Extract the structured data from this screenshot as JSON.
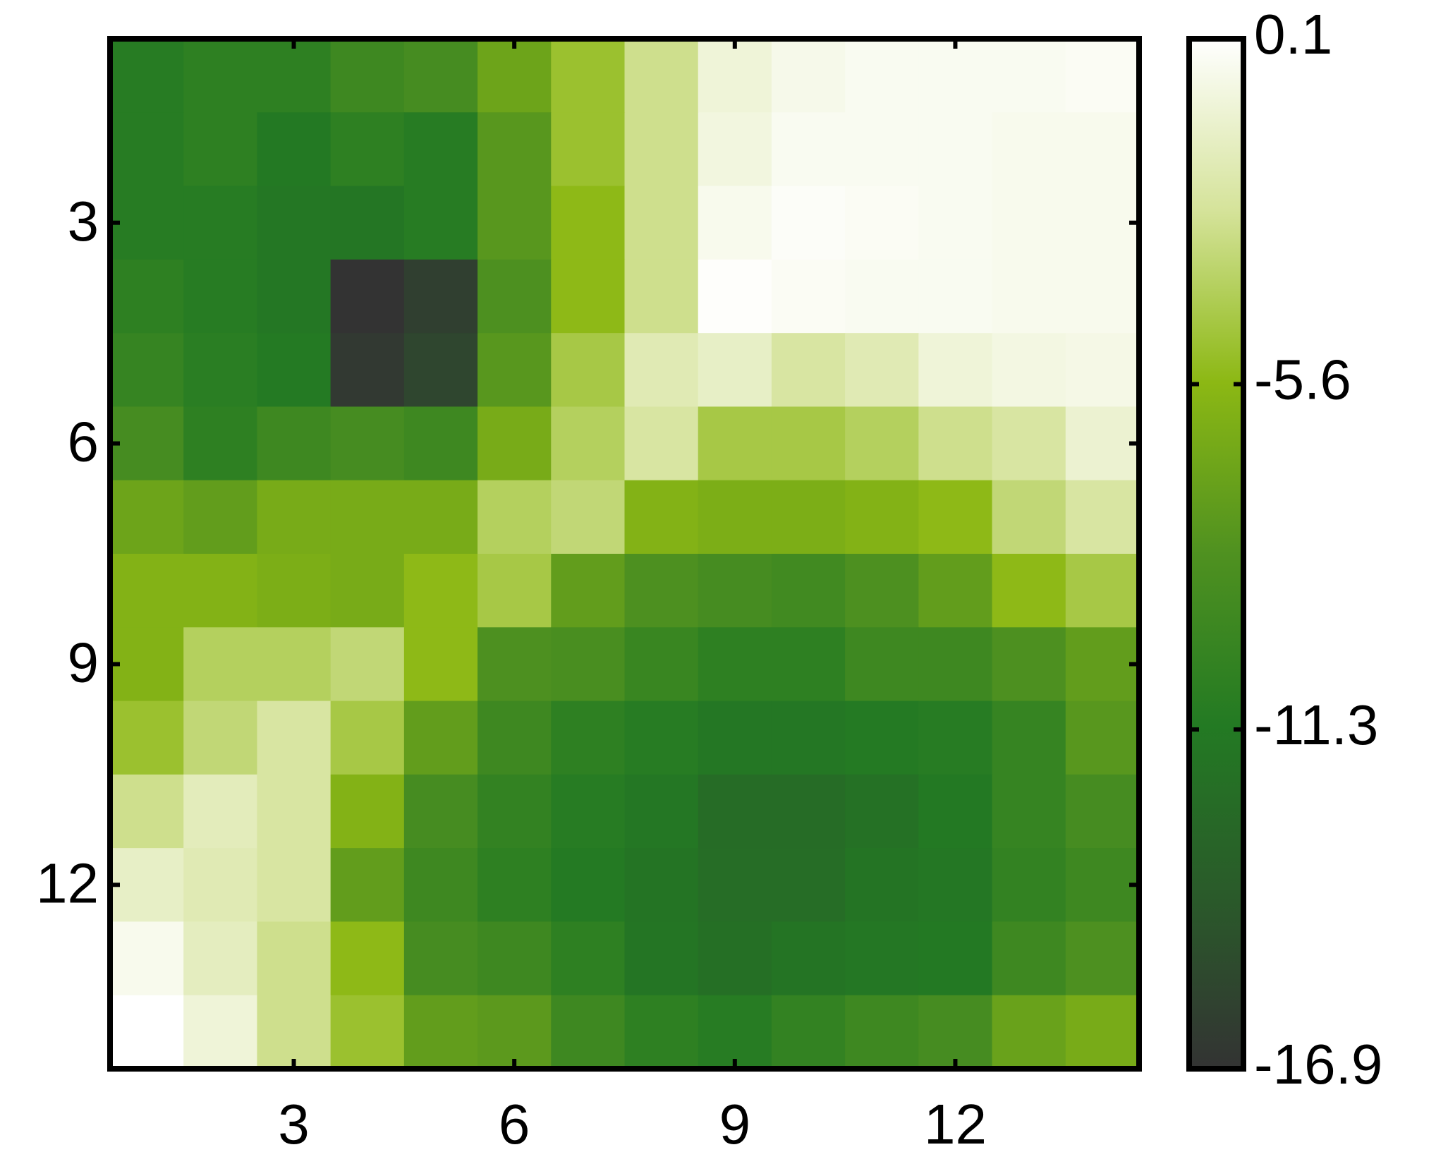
{
  "chart_data": {
    "type": "heatmap",
    "z": [
      [
        -11,
        -10.5,
        -10.5,
        -9.5,
        -9,
        -7,
        -5,
        -3,
        -1,
        -0.5,
        -0.3,
        -0.3,
        -0.3,
        -0.2
      ],
      [
        -11,
        -10.5,
        -11.3,
        -10.5,
        -11,
        -8,
        -5,
        -3,
        -0.8,
        -0.3,
        -0.3,
        -0.3,
        -0.4,
        -0.4
      ],
      [
        -11,
        -11,
        -11.5,
        -11.6,
        -11,
        -8,
        -5.5,
        -3,
        -0.4,
        -0.1,
        -0.2,
        -0.3,
        -0.4,
        -0.4
      ],
      [
        -10.5,
        -11,
        -11.5,
        -16.9,
        -16,
        -8.5,
        -5.5,
        -3,
        0,
        -0.2,
        -0.3,
        -0.3,
        -0.4,
        -0.4
      ],
      [
        -10,
        -10.8,
        -11.2,
        -16.5,
        -15.5,
        -8,
        -4.5,
        -2,
        -1.5,
        -2.5,
        -2,
        -1,
        -0.7,
        -0.6
      ],
      [
        -9,
        -10.5,
        -9.5,
        -9,
        -9.5,
        -6.5,
        -4,
        -2.5,
        -4.5,
        -4.5,
        -4,
        -3,
        -2.5,
        -1.2
      ],
      [
        -7,
        -7.5,
        -6.5,
        -6.5,
        -6.5,
        -4,
        -3.5,
        -6,
        -6.3,
        -6.3,
        -6,
        -5.5,
        -3.5,
        -2.5
      ],
      [
        -6,
        -6,
        -6.3,
        -6.5,
        -5.5,
        -4.5,
        -7.5,
        -8.5,
        -9,
        -9.3,
        -8.5,
        -7.5,
        -5.5,
        -4.5
      ],
      [
        -6,
        -4,
        -4,
        -3.5,
        -5.5,
        -8.5,
        -8.8,
        -9.8,
        -10.5,
        -10.5,
        -9.5,
        -9.5,
        -8.5,
        -7.5
      ],
      [
        -5,
        -3.5,
        -2.5,
        -4.5,
        -7.5,
        -9.5,
        -10.5,
        -11,
        -11.5,
        -11.5,
        -11.2,
        -11,
        -10,
        -8
      ],
      [
        -3,
        -1.8,
        -2.5,
        -6,
        -9,
        -10.2,
        -11,
        -11.5,
        -12.5,
        -12.5,
        -12,
        -11.3,
        -10,
        -9
      ],
      [
        -1.5,
        -2,
        -2.5,
        -7.5,
        -9.5,
        -10.5,
        -11.2,
        -11.8,
        -12.4,
        -12.4,
        -11.8,
        -11.5,
        -10.2,
        -9.5
      ],
      [
        -0.4,
        -1.7,
        -3,
        -5.5,
        -9,
        -9.5,
        -10.5,
        -11.7,
        -12.2,
        -11.8,
        -11.5,
        -11.3,
        -9.5,
        -8.5
      ],
      [
        0.1,
        -1,
        -3,
        -5,
        -7.5,
        -7.8,
        -9.5,
        -10.5,
        -11,
        -10.2,
        -9.5,
        -9,
        -7.2,
        -6.5
      ]
    ],
    "xlim": [
      0.5,
      14.5
    ],
    "ylim": [
      0.5,
      14.5
    ],
    "y_reversed": true,
    "xticks": [
      3,
      6,
      9,
      12
    ],
    "yticks": [
      3,
      6,
      9,
      12
    ],
    "colormap": [
      "#333333",
      "#2a5a2a",
      "#237a23",
      "#4f9120",
      "#8cb814",
      "#d5e39a",
      "#ffffff"
    ],
    "colorbar": {
      "clim": [
        -16.9,
        0.1
      ],
      "ticks": [
        -16.9,
        -11.3,
        -5.6,
        0.1
      ]
    }
  }
}
